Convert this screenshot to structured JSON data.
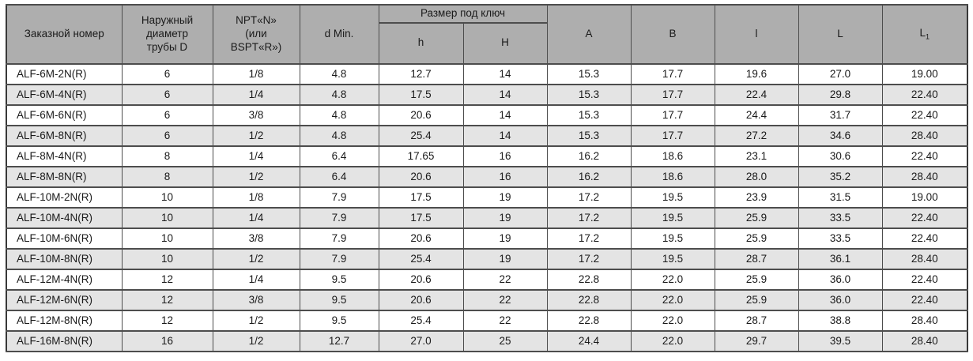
{
  "table": {
    "headers": {
      "order_number": "Заказной номер",
      "outer_diameter": "Наружный\nдиаметр\nтрубы D",
      "thread": "NPT«N»\n(или\nBSPT«R»)",
      "d_min": "d Min.",
      "wrench_size_group": "Размер под ключ",
      "h_small": "h",
      "h_big": "H",
      "a": "A",
      "b": "B",
      "l_small": "l",
      "l_big": "L",
      "l1_base": "L",
      "l1_sub": "1"
    },
    "rows": [
      [
        "ALF-6M-2N(R)",
        "6",
        "1/8",
        "4.8",
        "12.7",
        "14",
        "15.3",
        "17.7",
        "19.6",
        "27.0",
        "19.00"
      ],
      [
        "ALF-6M-4N(R)",
        "6",
        "1/4",
        "4.8",
        "17.5",
        "14",
        "15.3",
        "17.7",
        "22.4",
        "29.8",
        "22.40"
      ],
      [
        "ALF-6M-6N(R)",
        "6",
        "3/8",
        "4.8",
        "20.6",
        "14",
        "15.3",
        "17.7",
        "24.4",
        "31.7",
        "22.40"
      ],
      [
        "ALF-6M-8N(R)",
        "6",
        "1/2",
        "4.8",
        "25.4",
        "14",
        "15.3",
        "17.7",
        "27.2",
        "34.6",
        "28.40"
      ],
      [
        "ALF-8M-4N(R)",
        "8",
        "1/4",
        "6.4",
        "17.65",
        "16",
        "16.2",
        "18.6",
        "23.1",
        "30.6",
        "22.40"
      ],
      [
        "ALF-8M-8N(R)",
        "8",
        "1/2",
        "6.4",
        "20.6",
        "16",
        "16.2",
        "18.6",
        "28.0",
        "35.2",
        "28.40"
      ],
      [
        "ALF-10M-2N(R)",
        "10",
        "1/8",
        "7.9",
        "17.5",
        "19",
        "17.2",
        "19.5",
        "23.9",
        "31.5",
        "19.00"
      ],
      [
        "ALF-10M-4N(R)",
        "10",
        "1/4",
        "7.9",
        "17.5",
        "19",
        "17.2",
        "19.5",
        "25.9",
        "33.5",
        "22.40"
      ],
      [
        "ALF-10M-6N(R)",
        "10",
        "3/8",
        "7.9",
        "20.6",
        "19",
        "17.2",
        "19.5",
        "25.9",
        "33.5",
        "22.40"
      ],
      [
        "ALF-10M-8N(R)",
        "10",
        "1/2",
        "7.9",
        "25.4",
        "19",
        "17.2",
        "19.5",
        "28.7",
        "36.1",
        "28.40"
      ],
      [
        "ALF-12M-4N(R)",
        "12",
        "1/4",
        "9.5",
        "20.6",
        "22",
        "22.8",
        "22.0",
        "25.9",
        "36.0",
        "22.40"
      ],
      [
        "ALF-12M-6N(R)",
        "12",
        "3/8",
        "9.5",
        "20.6",
        "22",
        "22.8",
        "22.0",
        "25.9",
        "36.0",
        "22.40"
      ],
      [
        "ALF-12M-8N(R)",
        "12",
        "1/2",
        "9.5",
        "25.4",
        "22",
        "22.8",
        "22.0",
        "28.7",
        "38.8",
        "28.40"
      ],
      [
        "ALF-16M-8N(R)",
        "16",
        "1/2",
        "12.7",
        "27.0",
        "25",
        "24.4",
        "22.0",
        "29.7",
        "39.5",
        "28.40"
      ]
    ]
  },
  "colors": {
    "header_bg": "#aeaeae",
    "row_bg": "#ffffff",
    "row_alt_bg": "#e4e4e4",
    "grid": "#4d4d4d",
    "outer_border": "#383838",
    "text": "#1a1a1a"
  }
}
